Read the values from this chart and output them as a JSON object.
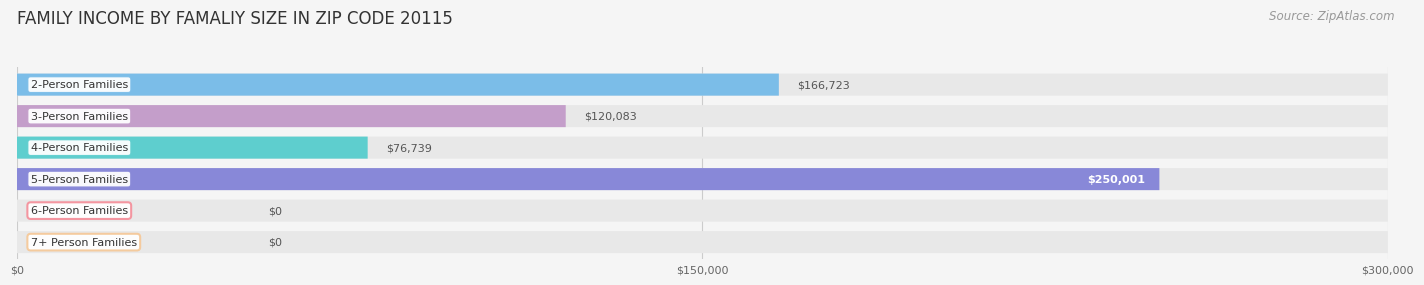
{
  "title": "FAMILY INCOME BY FAMALIY SIZE IN ZIP CODE 20115",
  "source": "Source: ZipAtlas.com",
  "categories": [
    "2-Person Families",
    "3-Person Families",
    "4-Person Families",
    "5-Person Families",
    "6-Person Families",
    "7+ Person Families"
  ],
  "values": [
    166723,
    120083,
    76739,
    250001,
    0,
    0
  ],
  "bar_colors": [
    "#7bbde8",
    "#c49eca",
    "#5ecece",
    "#8888d8",
    "#f4919c",
    "#f5c99a"
  ],
  "value_label_colors": [
    "#555555",
    "#555555",
    "#555555",
    "#ffffff",
    "#555555",
    "#555555"
  ],
  "xlim": [
    0,
    300000
  ],
  "xticks": [
    0,
    150000,
    300000
  ],
  "xtick_labels": [
    "$0",
    "$150,000",
    "$300,000"
  ],
  "bg_color": "#f5f5f5",
  "bar_bg_color": "#e8e8e8",
  "title_fontsize": 12,
  "label_fontsize": 8,
  "value_fontsize": 8,
  "source_fontsize": 8.5
}
